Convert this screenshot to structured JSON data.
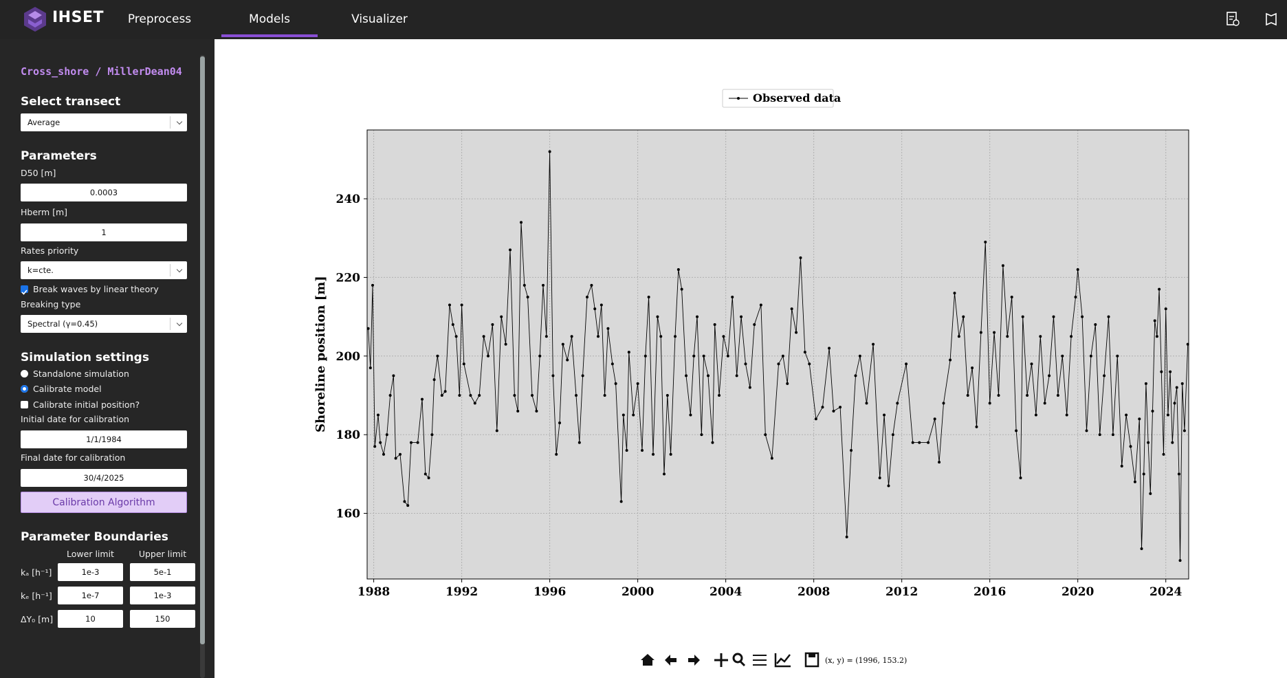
{
  "nav": {
    "brand": "IHSET",
    "tabs": [
      "Preprocess",
      "Models",
      "Visualizer"
    ],
    "active": 1
  },
  "sidebar": {
    "model_title": "Cross_shore / MillerDean04",
    "transect": {
      "heading": "Select transect",
      "value": "Average"
    },
    "parameters": {
      "heading": "Parameters",
      "d50": {
        "label": "D50 [m]",
        "value": "0.0003"
      },
      "hberm": {
        "label": "Hberm [m]",
        "value": "1"
      },
      "rates": {
        "label": "Rates priority",
        "value": "k=cte."
      },
      "break_waves": {
        "label": "Break waves by linear theory",
        "checked": true
      },
      "breaking": {
        "label": "Breaking type",
        "value": "Spectral (γ=0.45)"
      }
    },
    "simulation": {
      "heading": "Simulation settings",
      "modes": [
        {
          "label": "Standalone simulation",
          "checked": false
        },
        {
          "label": "Calibrate model",
          "checked": true
        }
      ],
      "calibrate_initial": {
        "label": "Calibrate initial position?",
        "checked": false
      },
      "initial_date": {
        "label": "Initial date for calibration",
        "value": "1/1/1984"
      },
      "final_date": {
        "label": "Final date for calibration",
        "value": "30/4/2025"
      },
      "button": "Calibration Algorithm"
    },
    "boundaries": {
      "heading": "Parameter Boundaries",
      "columns": [
        "Lower limit",
        "Upper limit"
      ],
      "rows": [
        {
          "label": "kₐ [h⁻¹]",
          "lower": "1e-3",
          "upper": "5e-1"
        },
        {
          "label": "kₑ [h⁻¹]",
          "lower": "1e-7",
          "upper": "1e-3"
        },
        {
          "label": "ΔY₀ [m]",
          "lower": "10",
          "upper": "150"
        }
      ]
    }
  },
  "chart_data": {
    "type": "line",
    "ylabel": "Shoreline position [m]",
    "x": [
      1987.75,
      1987.85,
      1987.95,
      1988.05,
      1988.2,
      1988.3,
      1988.45,
      1988.6,
      1988.75,
      1988.9,
      1989.0,
      1989.2,
      1989.4,
      1989.55,
      1989.7,
      1990.0,
      1990.2,
      1990.35,
      1990.5,
      1990.65,
      1990.75,
      1990.9,
      1991.1,
      1991.25,
      1991.45,
      1991.6,
      1991.75,
      1991.9,
      1992.0,
      1992.1,
      1992.4,
      1992.6,
      1992.8,
      1993.0,
      1993.2,
      1993.4,
      1993.6,
      1993.8,
      1994.0,
      1994.2,
      1994.4,
      1994.55,
      1994.7,
      1994.85,
      1995.0,
      1995.2,
      1995.4,
      1995.55,
      1995.7,
      1995.85,
      1996.0,
      1996.15,
      1996.3,
      1996.45,
      1996.6,
      1996.8,
      1997.0,
      1997.2,
      1997.35,
      1997.5,
      1997.7,
      1997.9,
      1998.05,
      1998.2,
      1998.35,
      1998.5,
      1998.65,
      1998.85,
      1999.0,
      1999.25,
      1999.35,
      1999.5,
      1999.6,
      1999.8,
      2000.0,
      2000.2,
      2000.35,
      2000.5,
      2000.7,
      2000.9,
      2001.05,
      2001.2,
      2001.35,
      2001.5,
      2001.7,
      2001.85,
      2002.0,
      2002.2,
      2002.4,
      2002.55,
      2002.7,
      2002.9,
      2003.0,
      2003.2,
      2003.4,
      2003.5,
      2003.7,
      2003.9,
      2004.1,
      2004.3,
      2004.5,
      2004.7,
      2004.9,
      2005.1,
      2005.3,
      2005.6,
      2005.8,
      2006.1,
      2006.4,
      2006.6,
      2006.8,
      2007.0,
      2007.2,
      2007.4,
      2007.6,
      2007.8,
      2008.1,
      2008.4,
      2008.7,
      2008.9,
      2009.2,
      2009.5,
      2009.7,
      2009.9,
      2010.1,
      2010.4,
      2010.7,
      2011.0,
      2011.2,
      2011.4,
      2011.6,
      2011.8,
      2012.2,
      2012.5,
      2012.8,
      2013.2,
      2013.5,
      2013.7,
      2013.9,
      2014.2,
      2014.4,
      2014.6,
      2014.8,
      2015.0,
      2015.2,
      2015.4,
      2015.6,
      2015.8,
      2016.0,
      2016.2,
      2016.4,
      2016.6,
      2016.8,
      2017.0,
      2017.2,
      2017.4,
      2017.5,
      2017.7,
      2017.9,
      2018.1,
      2018.3,
      2018.5,
      2018.7,
      2018.9,
      2019.1,
      2019.3,
      2019.5,
      2019.7,
      2019.9,
      2020.0,
      2020.2,
      2020.4,
      2020.6,
      2020.8,
      2021.0,
      2021.2,
      2021.4,
      2021.6,
      2021.8,
      2022.0,
      2022.2,
      2022.4,
      2022.6,
      2022.8,
      2022.9,
      2023.0,
      2023.1,
      2023.2,
      2023.3,
      2023.4,
      2023.5,
      2023.6,
      2023.7,
      2023.8,
      2023.9,
      2024.0,
      2024.1,
      2024.2,
      2024.3,
      2024.4,
      2024.5,
      2024.6,
      2024.65,
      2024.75,
      2024.85,
      2025.0
    ],
    "series": [
      {
        "name": "Observed data",
        "color": "#000000",
        "values": [
          207,
          197,
          218,
          177,
          185,
          178,
          175,
          180,
          190,
          195,
          174,
          175,
          163,
          162,
          178,
          178,
          189,
          170,
          169,
          180,
          194,
          200,
          190,
          191,
          213,
          208,
          205,
          190,
          213,
          198,
          190,
          188,
          190,
          205,
          200,
          208,
          181,
          210,
          203,
          227,
          190,
          186,
          234,
          218,
          215,
          190,
          186,
          200,
          218,
          205,
          252,
          195,
          175,
          183,
          203,
          199,
          205,
          190,
          178,
          195,
          215,
          218,
          212,
          205,
          213,
          190,
          207,
          198,
          193,
          163,
          185,
          176,
          201,
          185,
          193,
          176,
          200,
          215,
          175,
          210,
          205,
          170,
          190,
          175,
          205,
          222,
          217,
          195,
          185,
          200,
          210,
          180,
          200,
          195,
          178,
          208,
          190,
          205,
          200,
          215,
          195,
          210,
          198,
          192,
          208,
          213,
          180,
          174,
          198,
          200,
          193,
          212,
          206,
          225,
          201,
          198,
          184,
          187,
          202,
          186,
          187,
          154,
          176,
          195,
          200,
          188,
          203,
          169,
          185,
          167,
          180,
          188,
          198,
          178,
          178,
          178,
          184,
          173,
          188,
          199,
          216,
          205,
          210,
          190,
          197,
          182,
          206,
          229,
          188,
          206,
          190,
          223,
          205,
          215,
          181,
          169,
          210,
          190,
          198,
          185,
          205,
          188,
          195,
          210,
          190,
          200,
          185,
          205,
          215,
          222,
          210,
          181,
          200,
          208,
          180,
          195,
          210,
          180,
          200,
          172,
          185,
          177,
          168,
          184,
          151,
          170,
          193,
          178,
          165,
          186,
          209,
          205,
          217,
          196,
          175,
          212,
          185,
          196,
          178,
          188,
          192,
          170,
          148,
          193,
          181,
          203
        ]
      }
    ],
    "xlim": [
      1987.7,
      2025.04
    ],
    "ylim": [
      143.3,
      257.5
    ],
    "xticks": [
      1988,
      1992,
      1996,
      2000,
      2004,
      2008,
      2012,
      2016,
      2020,
      2024
    ],
    "yticks": [
      160,
      180,
      200,
      220,
      240
    ],
    "grid": true,
    "legend": "top"
  },
  "toolbar": {
    "status": "(x, y) = (1996, 153.2)"
  }
}
